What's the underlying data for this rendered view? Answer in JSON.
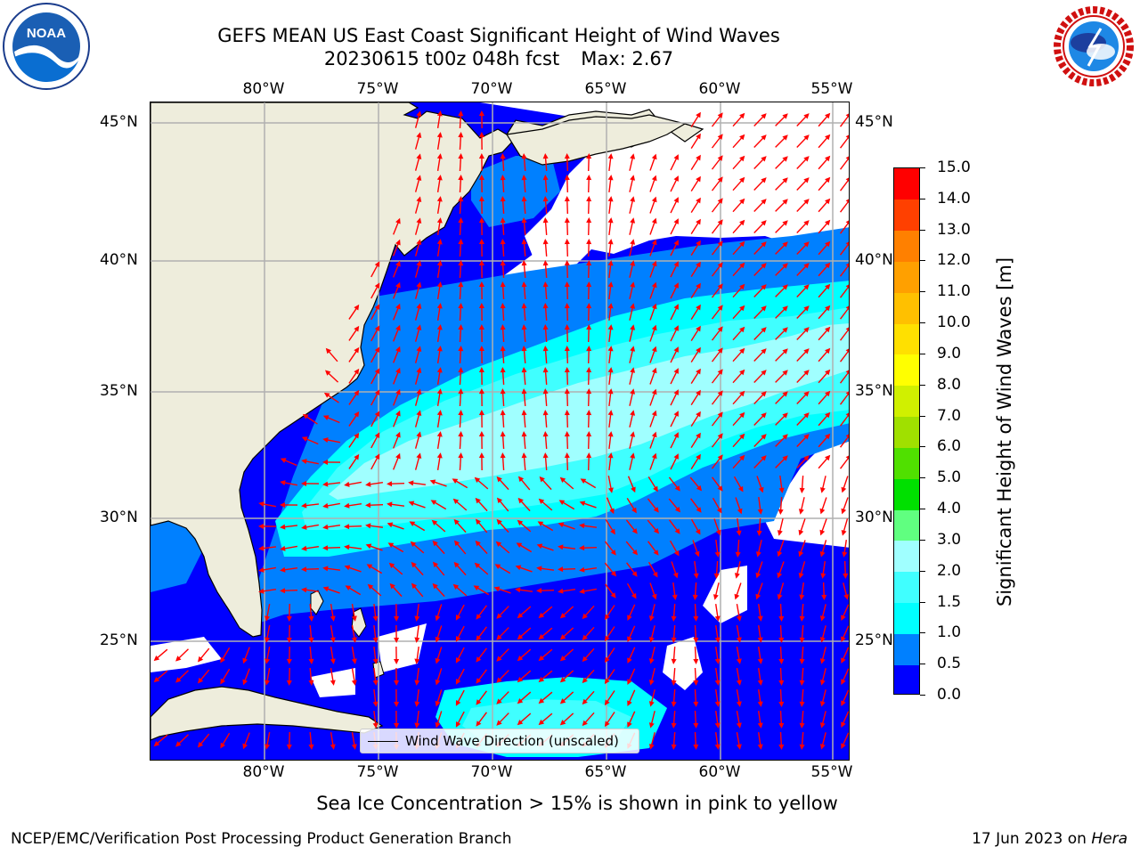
{
  "title": {
    "line1": "GEFS MEAN US East Coast Significant Height of Wind Waves",
    "line2_left": "20230615 t00z 048h fcst",
    "line2_right": "Max: 2.67"
  },
  "map": {
    "longitude_labels": [
      "80°W",
      "75°W",
      "70°W",
      "65°W",
      "60°W",
      "55°W"
    ],
    "latitude_labels": [
      "45°N",
      "40°N",
      "35°N",
      "30°N",
      "25°N"
    ],
    "legend_label": "Wind Wave Direction (unscaled)",
    "colors": {
      "land": "#eeeddc",
      "missing": "#ffffff",
      "grid": "#b0b0b0",
      "arrows": "#ff0000",
      "coastline": "#000000"
    }
  },
  "colorbar": {
    "title": "Significant Height of Wind Waves [m]",
    "tick_labels": [
      "0.0",
      "0.5",
      "1.0",
      "1.5",
      "2.0",
      "3.0",
      "4.0",
      "5.0",
      "6.0",
      "7.0",
      "8.0",
      "9.0",
      "10.0",
      "11.0",
      "12.0",
      "13.0",
      "14.0",
      "15.0"
    ],
    "colors": [
      "#0000ff",
      "#0080ff",
      "#00ffff",
      "#40ffff",
      "#a0ffff",
      "#60ff80",
      "#00e000",
      "#50e000",
      "#a0e000",
      "#d0f000",
      "#ffff00",
      "#ffe000",
      "#ffc000",
      "#ffa000",
      "#ff8000",
      "#ff4000",
      "#ff0000"
    ]
  },
  "notes": {
    "bottom": "Sea Ice Concentration > 15% is shown in pink to yellow",
    "footer_left": "NCEP/EMC/Verification Post Processing Product Generation Branch",
    "footer_date": "17 Jun 2023 on",
    "footer_machine": "Hera"
  },
  "logos": {
    "noaa": "NOAA",
    "nws": "NATIONAL WEATHER SERVICE"
  }
}
